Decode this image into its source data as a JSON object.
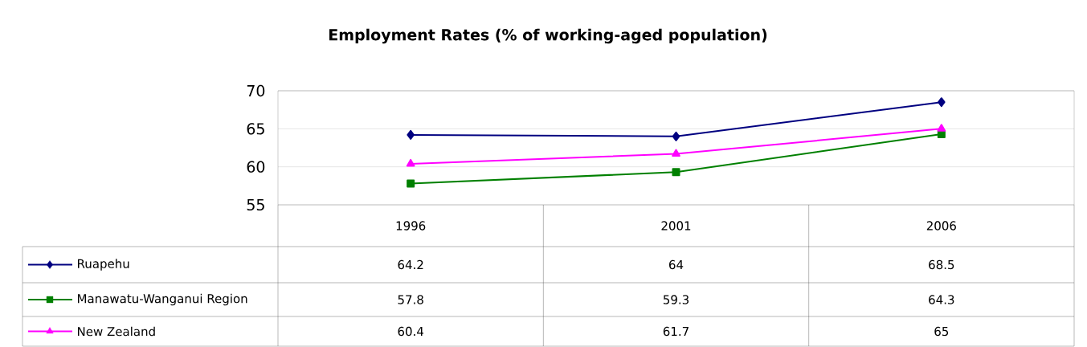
{
  "chart_data": {
    "type": "line",
    "title": "Employment Rates (% of working-aged population)",
    "categories": [
      "1996",
      "2001",
      "2006"
    ],
    "series": [
      {
        "name": "Ruapehu",
        "color": "#000080",
        "marker": "diamond",
        "values": [
          64.2,
          64,
          68.5
        ]
      },
      {
        "name": "Manawatu-Wanganui Region",
        "color": "#008000",
        "marker": "square",
        "values": [
          57.8,
          59.3,
          64.3
        ]
      },
      {
        "name": "New Zealand",
        "color": "#ff00ff",
        "marker": "triangle",
        "values": [
          60.4,
          61.7,
          65
        ]
      }
    ],
    "ylim": [
      55,
      70
    ],
    "yticks": [
      55,
      60,
      65,
      70
    ],
    "grid": "y",
    "legend": "bottom",
    "data_labels": true
  }
}
